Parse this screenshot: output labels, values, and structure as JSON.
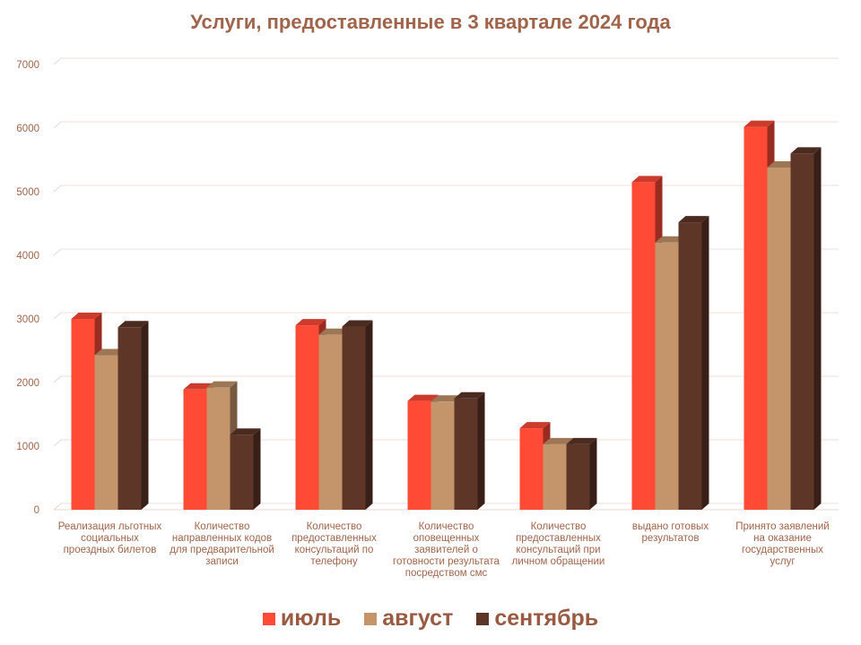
{
  "chart_data": {
    "type": "bar",
    "title": "Услуги, предоставленные в 3 квартале 2024 года",
    "xlabel": "",
    "ylabel": "",
    "ylim": [
      0,
      7000
    ],
    "yticks": [
      "0",
      "1000",
      "2000",
      "3000",
      "4000",
      "5000",
      "6000",
      "7000"
    ],
    "grid": true,
    "legend_position": "bottom",
    "categories": [
      "Реализация льготных социальных проездных билетов",
      "Количество направленных кодов для предварительной записи",
      "Количество предоставленных консультаций  по телефону",
      "Количество оповещенных заявителей о готовности результата посредством смс",
      "Количество предоставленных консультаций  при личном обращении",
      "выдано готовых результатов",
      "Принято заявлений на оказание государственных услуг"
    ],
    "series": [
      {
        "name": "июль",
        "color": "#ff4a36",
        "values": [
          3000,
          1890,
          2900,
          1710,
          1280,
          5150,
          6020
        ]
      },
      {
        "name": "август",
        "color": "#c4956a",
        "values": [
          2430,
          1920,
          2750,
          1700,
          1030,
          4200,
          5380
        ]
      },
      {
        "name": "сентябрь",
        "color": "#5e3628",
        "values": [
          2870,
          1180,
          2880,
          1750,
          1030,
          4520,
          5600
        ]
      }
    ]
  }
}
